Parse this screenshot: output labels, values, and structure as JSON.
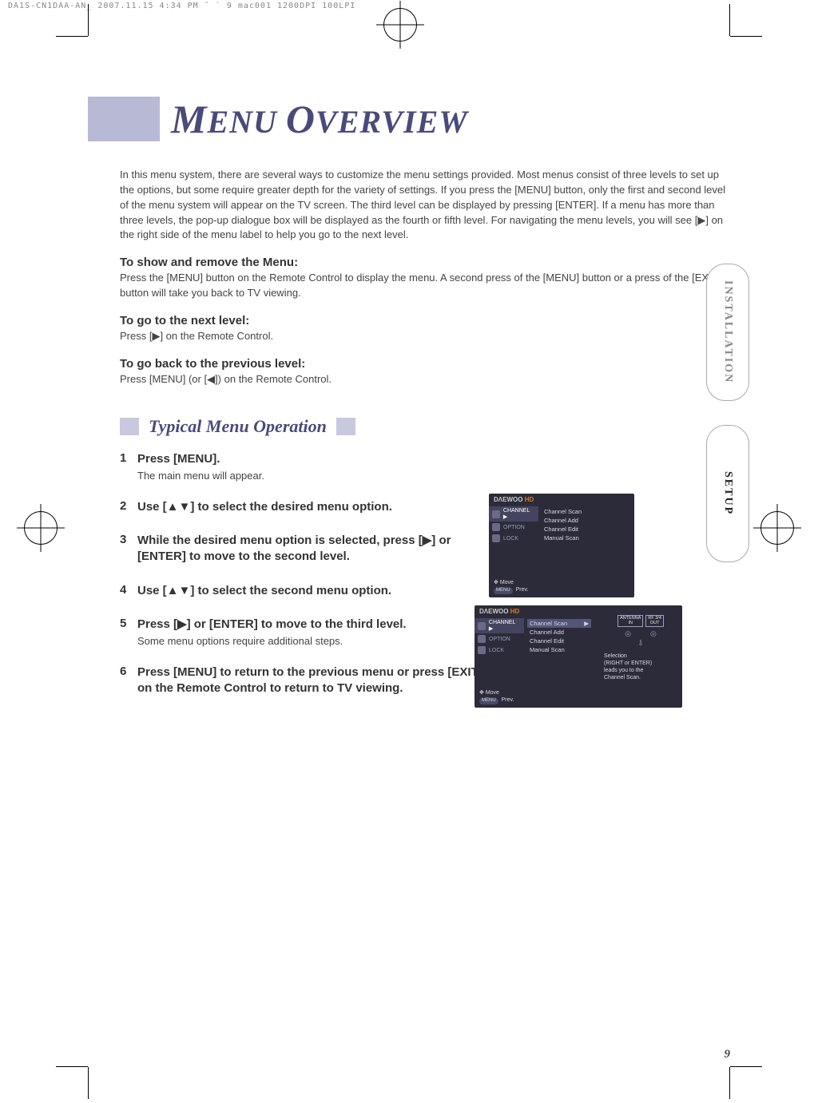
{
  "print_header": "DA1S-CN1DAA-AN_   2007.11.15 4:34 PM   ˘  ` 9   mac001  1200DPI 100LPI",
  "title_parts": [
    "M",
    "ENU ",
    "O",
    "VERVIEW"
  ],
  "intro": "In this menu system, there are several ways to customize the menu settings provided. Most menus consist of three levels to set up the options, but some require greater depth for the variety of settings. If you press the [MENU] button, only the first and second level of the menu system will appear on the TV screen. The third level can be displayed by pressing [ENTER]. If a menu has more than three levels, the pop-up dialogue box will be displayed as the fourth or fifth level. For navigating the menu levels, you will see [▶] on the right side of the menu label to help you go to the next level.",
  "blocks": [
    {
      "head": "To show and remove the Menu:",
      "text": "Press the [MENU] button on the Remote Control to display the menu. A second press of the [MENU] button or a press of the [EXIT] button will take you back to TV viewing."
    },
    {
      "head": "To go to the next level:",
      "text": "Press [▶] on the Remote Control."
    },
    {
      "head": "To go back to the previous level:",
      "text": "Press [MENU] (or [◀]) on the Remote Control."
    }
  ],
  "section_title": "Typical Menu Operation",
  "steps": [
    {
      "n": "1",
      "title": "Press [MENU].",
      "desc": "The main menu will appear."
    },
    {
      "n": "2",
      "title": "Use [▲▼] to select the desired menu option.",
      "desc": ""
    },
    {
      "n": "3",
      "title": "While the desired menu option is selected, press [▶] or [ENTER] to move to the second level.",
      "desc": ""
    },
    {
      "n": "4",
      "title": "Use [▲▼] to select the second menu option.",
      "desc": ""
    },
    {
      "n": "5",
      "title": "Press [▶] or [ENTER] to move to the third level.",
      "desc": "Some menu options require additional steps."
    },
    {
      "n": "6",
      "title": "Press [MENU] to return to the previous menu or press [EXIT] on the Remote Control to return to TV viewing.",
      "desc": ""
    }
  ],
  "side_tabs": [
    {
      "label": "INSTALLATION",
      "active": false
    },
    {
      "label": "SETUP",
      "active": true
    }
  ],
  "menu": {
    "logo_brand": "DΛEWOO",
    "logo_suffix": "HD",
    "left": [
      {
        "label": "CHANNEL ▶",
        "active": true
      },
      {
        "label": "OPTION",
        "active": false
      },
      {
        "label": "LOCK",
        "active": false
      }
    ],
    "right": [
      "Channel Scan",
      "Channel Add",
      "Channel Edit",
      "Manual Scan"
    ],
    "foot_move": "Move",
    "foot_prev": "Prev.",
    "antenna_in": "ANTENNA\nIN",
    "antenna_out": "RF 3/4\nOUT",
    "helper_lines": "Selection\n(RIGHT or ENTER)\nleads you to the\nChannel Scan.",
    "arrow": "▶"
  },
  "page_number": "9"
}
